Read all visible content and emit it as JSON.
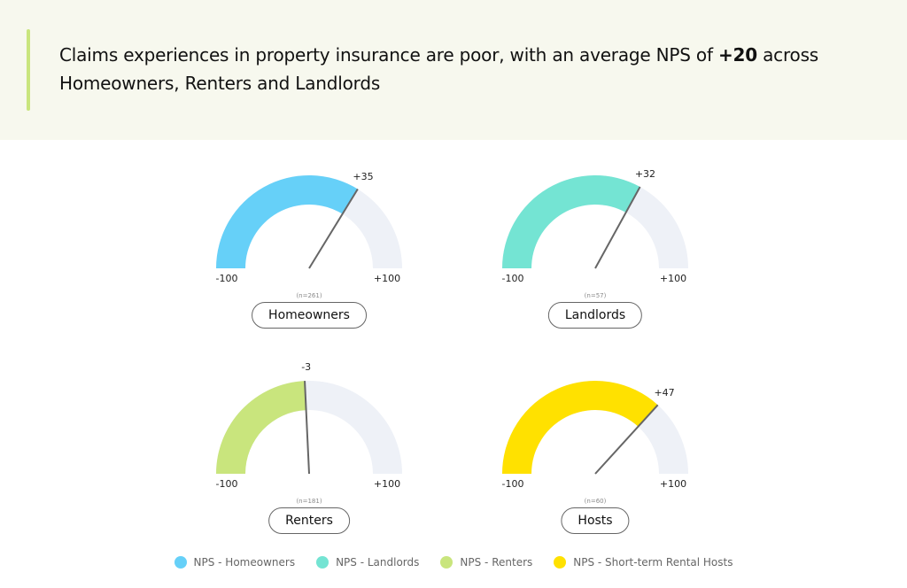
{
  "headline": {
    "part1": "Claims experiences in property insurance are poor, with an average NPS of ",
    "highlight": "+20",
    "part2": " across Homeowners, Renters and Landlords"
  },
  "colors": {
    "banner_bg": "#f7f8ee",
    "banner_bar": "#c9e57d",
    "track": "#eef1f7",
    "needle": "#666666"
  },
  "chart_data": [
    {
      "type": "gauge",
      "segment": "Homeowners",
      "value": 35,
      "value_label": "+35",
      "min": -100,
      "max": 100,
      "min_label": "-100",
      "max_label": "+100",
      "n_label": "(n=261)",
      "color": "#66d0f8"
    },
    {
      "type": "gauge",
      "segment": "Landlords",
      "value": 32,
      "value_label": "+32",
      "min": -100,
      "max": 100,
      "min_label": "-100",
      "max_label": "+100",
      "n_label": "(n=57)",
      "color": "#74e4d3"
    },
    {
      "type": "gauge",
      "segment": "Renters",
      "value": -3,
      "value_label": "-3",
      "min": -100,
      "max": 100,
      "min_label": "-100",
      "max_label": "+100",
      "n_label": "(n=181)",
      "color": "#c9e57d"
    },
    {
      "type": "gauge",
      "segment": "Hosts",
      "value": 47,
      "value_label": "+47",
      "min": -100,
      "max": 100,
      "min_label": "-100",
      "max_label": "+100",
      "n_label": "(n=60)",
      "color": "#ffe100"
    }
  ],
  "legend": [
    {
      "label": "NPS - Homeowners",
      "color": "#66d0f8"
    },
    {
      "label": "NPS - Landlords",
      "color": "#74e4d3"
    },
    {
      "label": "NPS - Renters",
      "color": "#c9e57d"
    },
    {
      "label": "NPS - Short-term Rental Hosts",
      "color": "#ffe100"
    }
  ]
}
